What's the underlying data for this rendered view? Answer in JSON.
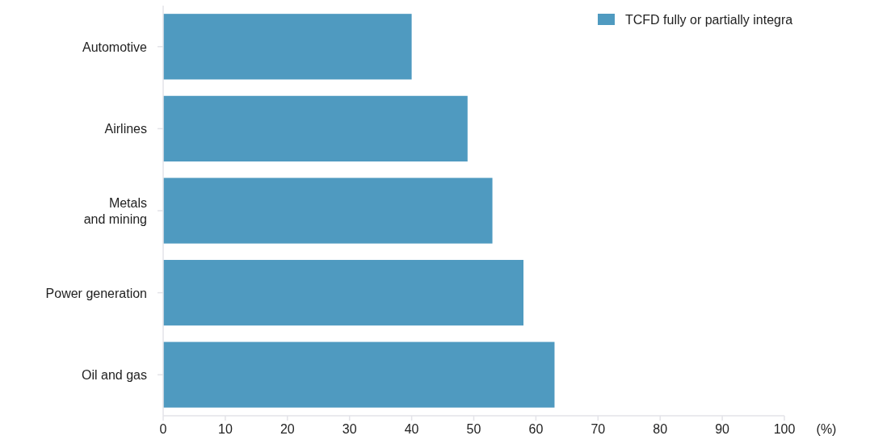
{
  "chart_data": {
    "type": "bar",
    "orientation": "horizontal",
    "categories": [
      "Automotive",
      "Airlines",
      "Metals\nand mining",
      "Power generation",
      "Oil and gas"
    ],
    "series": [
      {
        "name": "TCFD fully or partially integra",
        "color": "#4f9ac0",
        "values": [
          40,
          49,
          53,
          58,
          63
        ]
      }
    ],
    "xlim": [
      0,
      100
    ],
    "xticks": [
      0,
      10,
      20,
      30,
      40,
      50,
      60,
      70,
      80,
      90,
      100
    ],
    "xlabel": "(%)",
    "legend": "top right"
  }
}
